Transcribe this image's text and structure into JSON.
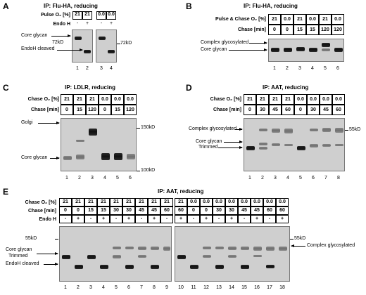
{
  "panels": {
    "A": {
      "letter": "A",
      "ip": "IP: Flu-HA, reducing",
      "rows": [
        {
          "label": "Pulse O₂ [%]",
          "values": [
            "21",
            "21",
            "0.0",
            "0.0"
          ]
        },
        {
          "label": "Endo H",
          "values": [
            "-",
            "+",
            "-",
            "+"
          ]
        }
      ],
      "lanes": [
        "1",
        "2",
        "3",
        "4"
      ],
      "labels": {
        "core": "Core glycan",
        "endo": "EndoH cleaved",
        "mw1": "72kD",
        "mw2": "72kD"
      }
    },
    "B": {
      "letter": "B",
      "ip": "IP: Flu-HA, reducing",
      "rows": [
        {
          "label": "Pulse & Chase O₂ [%]",
          "values": [
            "21",
            "0.0",
            "21",
            "0.0",
            "21",
            "0.0"
          ]
        },
        {
          "label": "Chase [min]",
          "values": [
            "0",
            "0",
            "15",
            "15",
            "120",
            "120"
          ]
        }
      ],
      "lanes": [
        "1",
        "2",
        "3",
        "4",
        "5",
        "6"
      ],
      "labels": {
        "complex": "Complex glycosylated",
        "core": "Core glycan"
      }
    },
    "C": {
      "letter": "C",
      "ip": "IP: LDLR, reducing",
      "rows": [
        {
          "label": "Chase O₂ [%]",
          "values": [
            "21",
            "21",
            "21",
            "0.0",
            "0.0",
            "0.0"
          ]
        },
        {
          "label": "Chase [min]",
          "values": [
            "0",
            "15",
            "120",
            "0",
            "15",
            "120"
          ]
        }
      ],
      "lanes": [
        "1",
        "2",
        "3",
        "4",
        "5",
        "6"
      ],
      "labels": {
        "golgi": "Golgi",
        "core": "Core glycan",
        "mw1": "150kD",
        "mw2": "100kD"
      }
    },
    "D": {
      "letter": "D",
      "ip": "IP: AAT, reducing",
      "rows": [
        {
          "label": "Chase O₂ [%]",
          "values": [
            "21",
            "21",
            "21",
            "21",
            "0.0",
            "0.0",
            "0.0",
            "0.0"
          ]
        },
        {
          "label": "Chase [min]",
          "values": [
            "0",
            "30",
            "45",
            "60",
            "0",
            "30",
            "45",
            "60"
          ]
        }
      ],
      "lanes": [
        "1",
        "2",
        "3",
        "4",
        "5",
        "6",
        "7",
        "8"
      ],
      "labels": {
        "complex": "Complex glycosylated",
        "core": "Core glycan",
        "trimmed": "Trimmed",
        "mw": "55kD"
      }
    },
    "E": {
      "letter": "E",
      "ip": "IP: AAT, reducing",
      "rows": [
        {
          "label": "Chase O₂ [%]",
          "values": [
            "21",
            "21",
            "21",
            "21",
            "21",
            "21",
            "21",
            "21",
            "21",
            "21",
            "0.0",
            "0.0",
            "0.0",
            "0.0",
            "0.0",
            "0.0",
            "0.0",
            "0.0"
          ]
        },
        {
          "label": "Chase [min]",
          "values": [
            "0",
            "0",
            "15",
            "15",
            "30",
            "30",
            "45",
            "45",
            "60",
            "60",
            "0",
            "0",
            "30",
            "30",
            "45",
            "45",
            "60",
            "60"
          ]
        },
        {
          "label": "Endo H",
          "values": [
            "-",
            "+",
            "-",
            "+",
            "-",
            "+",
            "-",
            "+",
            "-",
            "+",
            "-",
            "+",
            "-",
            "+",
            "-",
            "+",
            "-",
            "+"
          ]
        }
      ],
      "lanes": [
        "1",
        "2",
        "3",
        "4",
        "5",
        "6",
        "7",
        "8",
        "9",
        "10",
        "11",
        "12",
        "13",
        "14",
        "15",
        "16",
        "17",
        "18"
      ],
      "labels": {
        "mw_left": "55kD",
        "core": "Core glycan",
        "trimmed": "Trimmed",
        "endo": "EndoH cleaved",
        "mw_right": "55kD",
        "complex": "Complex glycosylated"
      }
    }
  }
}
